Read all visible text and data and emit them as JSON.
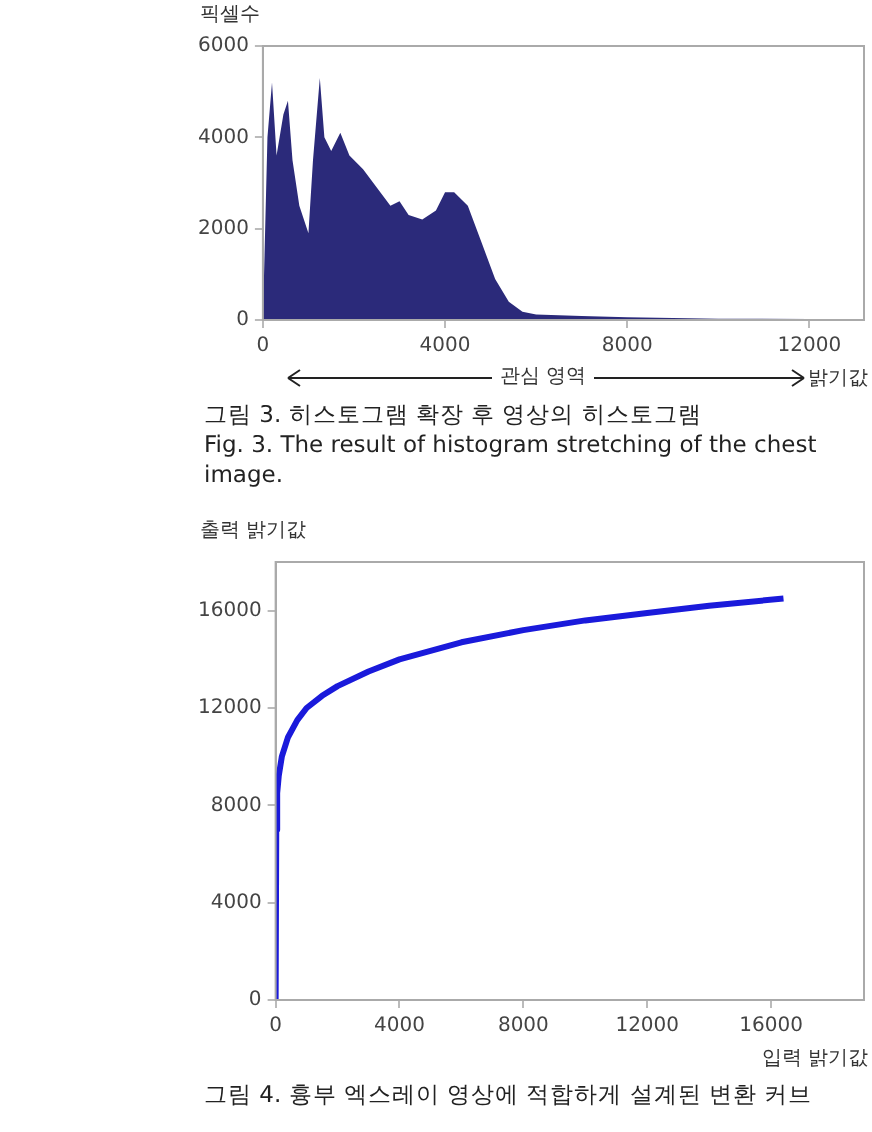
{
  "chart_data": [
    {
      "type": "area",
      "title": "그림 3.  히스토그램 확장 후 영상의 히스토그램",
      "subtitle": "Fig. 3. The result of histogram stretching of the chest image.",
      "ylabel": "픽셀수",
      "xlabel": "밝기값",
      "annotations": [
        "관심 영역"
      ],
      "series": [
        {
          "color": "#2b2a7a",
          "x": [
            0,
            100,
            200,
            300,
            450,
            550,
            650,
            800,
            900,
            1000,
            1100,
            1250,
            1350,
            1500,
            1700,
            1900,
            2200,
            2500,
            2800,
            3000,
            3200,
            3500,
            3800,
            4000,
            4200,
            4500,
            4800,
            5100,
            5400,
            5700,
            6000,
            7000,
            8000,
            10000,
            12000,
            12300
          ],
          "values": [
            0,
            4000,
            5200,
            3600,
            4500,
            4800,
            3500,
            2500,
            2200,
            1900,
            3500,
            5300,
            4000,
            3700,
            4100,
            3600,
            3300,
            2900,
            2500,
            2600,
            2300,
            2200,
            2400,
            2800,
            2800,
            2500,
            1700,
            900,
            400,
            180,
            120,
            90,
            60,
            30,
            20,
            0
          ]
        }
      ],
      "xlim": [
        0,
        13200
      ],
      "xticks": [
        0,
        4000,
        8000,
        12000
      ],
      "ylim": [
        0,
        6000
      ],
      "yticks": [
        0,
        2000,
        4000,
        6000
      ],
      "grid": false,
      "legend": false
    },
    {
      "type": "line",
      "title": "그림 4.  흉부 엑스레이 영상에 적합하게 설계된 변환 커브",
      "ylabel": "출력 밝기값",
      "xlabel": "입력 밝기값",
      "series": [
        {
          "color": "#1a1adb",
          "x": [
            0,
            20,
            50,
            100,
            200,
            400,
            700,
            1000,
            1500,
            2000,
            3000,
            4000,
            6000,
            8000,
            10000,
            12000,
            14000,
            16400
          ],
          "values": [
            0,
            7000,
            8500,
            9200,
            10000,
            10800,
            11500,
            12000,
            12500,
            12900,
            13500,
            14000,
            14700,
            15200,
            15600,
            15900,
            16200,
            16500
          ]
        }
      ],
      "xlim": [
        0,
        19000
      ],
      "xticks": [
        0,
        4000,
        8000,
        12000,
        16000
      ],
      "ylim": [
        0,
        18000
      ],
      "yticks": [
        0,
        4000,
        8000,
        12000,
        16000
      ],
      "grid": false,
      "legend": false,
      "marker": "none",
      "line_style": "solid"
    }
  ]
}
